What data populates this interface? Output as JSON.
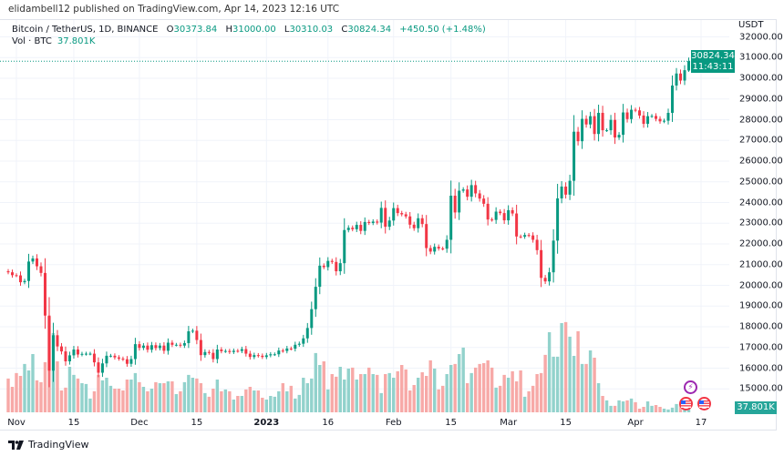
{
  "header": {
    "published": "elidambell12 published on TradingView.com, Apr 14, 2023 12:16 UTC"
  },
  "legend": {
    "symbol": "Bitcoin / TetherUS, 1D, BINANCE",
    "o_label": "O",
    "o": "30373.84",
    "h_label": "H",
    "h": "31000.00",
    "l_label": "L",
    "l": "30310.03",
    "c_label": "C",
    "c": "30824.34",
    "change": "+450.50 (+1.48%)",
    "vol_label": "Vol · BTC",
    "vol": "37.801K"
  },
  "price_axis": {
    "unit": "USDT",
    "last_price": "30824.34",
    "countdown": "11:43:11",
    "volume_tag": "37.801K"
  },
  "colors": {
    "up": "#089981",
    "down": "#F23645",
    "vol_up": "#92D2CC",
    "vol_down": "#F7A9A7",
    "grid": "#F0F3FA"
  },
  "footer": {
    "brand": "TradingView"
  },
  "events": [
    {
      "icon": "lightning-icon"
    },
    {
      "icon": "us-flag-icon"
    },
    {
      "icon": "us-flag-icon"
    }
  ],
  "chart_data": {
    "type": "candlestick",
    "title": "Bitcoin / TetherUS, 1D, BINANCE",
    "ylabel": "USDT",
    "ylim": [
      14500,
      32300
    ],
    "grid": true,
    "y_ticks": [
      32000,
      31000,
      30000,
      29000,
      28000,
      27000,
      26000,
      25000,
      24000,
      23000,
      22000,
      21000,
      20000,
      19000,
      18000,
      17000,
      16000,
      15000
    ],
    "x_ticks": [
      {
        "label": "Nov",
        "date": "2022-11-01"
      },
      {
        "label": "15",
        "date": "2022-11-15"
      },
      {
        "label": "Dec",
        "date": "2022-12-01"
      },
      {
        "label": "15",
        "date": "2022-12-15"
      },
      {
        "label": "2023",
        "date": "2023-01-01",
        "bold": true
      },
      {
        "label": "16",
        "date": "2023-01-16"
      },
      {
        "label": "Feb",
        "date": "2023-02-01"
      },
      {
        "label": "15",
        "date": "2023-02-15"
      },
      {
        "label": "Mar",
        "date": "2023-03-01"
      },
      {
        "label": "15",
        "date": "2023-03-15"
      },
      {
        "label": "Apr",
        "date": "2023-04-01"
      },
      {
        "label": "17",
        "date": "2023-04-17"
      }
    ],
    "first_open": 20680,
    "last_candle": {
      "open": 30373.84,
      "high": 31000.0,
      "low": 30310.03,
      "close": 30824.34,
      "volume_k": 37.801
    },
    "months": [
      {
        "month": "2022-10",
        "from_day": 30,
        "close": [
          20630,
          20490
        ],
        "volume_k": [
          167,
          126
        ]
      },
      {
        "month": "2022-11",
        "from_day": 1,
        "close": [
          20480,
          20150,
          20210,
          21150,
          21300,
          20920,
          20600,
          18540,
          15880,
          17590,
          17050,
          16810,
          16330,
          16620,
          16900,
          16660,
          16690,
          16700,
          16700,
          16280,
          15780,
          16230,
          16600,
          16600,
          16520,
          16460,
          16430,
          16210,
          16440,
          17160
        ],
        "volume_k": [
          194,
          180,
          239,
          207,
          288,
          158,
          149,
          248,
          473,
          392,
          252,
          108,
          122,
          225,
          185,
          167,
          144,
          140,
          68,
          104,
          185,
          158,
          171,
          131,
          117,
          117,
          108,
          162,
          162,
          194
        ]
      },
      {
        "month": "2022-12",
        "from_day": 1,
        "close": [
          16980,
          17090,
          16890,
          17110,
          16970,
          17090,
          16840,
          17230,
          17130,
          17130,
          17090,
          17210,
          17780,
          17810,
          17360,
          16630,
          16780,
          16740,
          16440,
          16900,
          16820,
          16830,
          16780,
          16840,
          16830,
          16920,
          16700,
          16540,
          16630,
          16600,
          16540
        ],
        "volume_k": [
          149,
          126,
          104,
          117,
          149,
          144,
          144,
          153,
          153,
          90,
          104,
          149,
          185,
          171,
          167,
          144,
          95,
          77,
          117,
          162,
          104,
          113,
          104,
          63,
          81,
          81,
          113,
          126,
          108,
          108,
          72
        ]
      },
      {
        "month": "2023-01",
        "from_day": 1,
        "close": [
          16620,
          16670,
          16670,
          16850,
          16830,
          16950,
          16940,
          17130,
          17180,
          17440,
          17940,
          18850,
          19930,
          20950,
          20880,
          21180,
          21130,
          20680,
          21070,
          22670,
          22780,
          22710,
          22920,
          22630,
          23060,
          23010,
          23080,
          23030,
          23740,
          22830,
          23130
        ],
        "volume_k": [
          63,
          81,
          77,
          104,
          144,
          104,
          131,
          68,
          86,
          171,
          144,
          167,
          293,
          234,
          252,
          113,
          189,
          176,
          225,
          162,
          216,
          221,
          162,
          189,
          189,
          221,
          189,
          185,
          95,
          189,
          194
        ]
      },
      {
        "month": "2023-02",
        "from_day": 1,
        "close": [
          23730,
          23490,
          23430,
          23330,
          22930,
          22760,
          23240,
          22960,
          21800,
          21630,
          21860,
          21780,
          21770,
          22200,
          24330,
          23520,
          24570,
          24630,
          24280,
          24840,
          24440,
          24190,
          23940,
          23180,
          23160,
          23560,
          23490,
          23140
        ],
        "volume_k": [
          171,
          203,
          234,
          212,
          108,
          135,
          171,
          198,
          180,
          257,
          216,
          113,
          131,
          189,
          234,
          239,
          288,
          320,
          144,
          194,
          221,
          239,
          243,
          257,
          221,
          122,
          131,
          185
        ]
      },
      {
        "month": "2023-03",
        "from_day": 1,
        "close": [
          23630,
          23470,
          22360,
          22350,
          22430,
          22410,
          22200,
          21700,
          20360,
          20190,
          20630,
          22160,
          24200,
          24770,
          24380,
          25050,
          27420,
          26960,
          28040,
          27770,
          28170,
          27310,
          28330,
          27490,
          27490,
          27990,
          27140,
          27270,
          28350,
          28030,
          28480
        ],
        "volume_k": [
          171,
          203,
          153,
          207,
          77,
          104,
          131,
          189,
          194,
          284,
          396,
          275,
          275,
          441,
          446,
          374,
          279,
          401,
          239,
          239,
          306,
          270,
          144,
          81,
          59,
          32,
          32,
          59,
          54,
          59,
          68
        ]
      },
      {
        "month": "2023-04",
        "from_day": 1,
        "close": [
          28450,
          28200,
          27800,
          28170,
          28180,
          28040,
          27920,
          27950,
          28330,
          29650,
          30230,
          29890,
          30390,
          30824.34
        ],
        "volume_k": [
          50,
          18,
          27,
          54,
          32,
          36,
          27,
          18,
          14,
          23,
          41,
          41,
          41,
          37.801
        ]
      }
    ]
  }
}
